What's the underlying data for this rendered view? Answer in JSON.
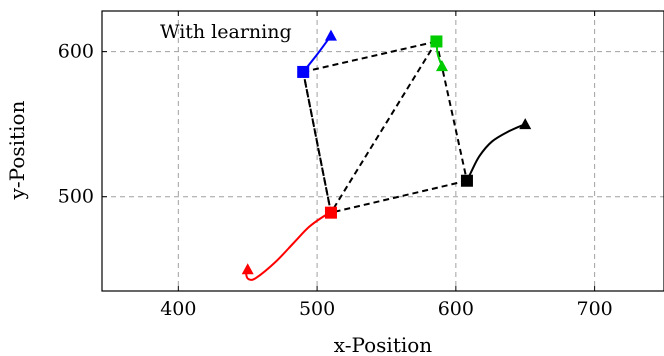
{
  "chart_data": {
    "type": "line",
    "title": "",
    "xlabel": "x-Position",
    "ylabel": "y-Position",
    "xlim": [
      345,
      750
    ],
    "ylim": [
      435,
      628
    ],
    "xticks": [
      400,
      500,
      600,
      700
    ],
    "yticks": [
      500,
      600
    ],
    "grid": true,
    "grid_style": "dashed",
    "annotation": "With learning",
    "colors": {
      "red": "#ff0000",
      "blue": "#0000ff",
      "green": "#00cc00",
      "black": "#000000",
      "grid": "#a0a0a0"
    },
    "formation": {
      "style": "dashed",
      "color": "#000000",
      "points": [
        [
          490,
          586
        ],
        [
          586,
          607
        ],
        [
          608,
          511
        ],
        [
          510,
          489
        ]
      ],
      "edges": [
        [
          0,
          1
        ],
        [
          1,
          2
        ],
        [
          2,
          3
        ],
        [
          3,
          0
        ],
        [
          0,
          3
        ],
        [
          1,
          3
        ]
      ]
    },
    "series": [
      {
        "color": "red",
        "start": [
          450,
          450
        ],
        "end": [
          510,
          489
        ],
        "path": [
          [
            450,
            450
          ],
          [
            449,
            446
          ],
          [
            451,
            443
          ],
          [
            456,
            444
          ],
          [
            470,
            455
          ],
          [
            483,
            468
          ],
          [
            494,
            479
          ],
          [
            504,
            486
          ],
          [
            510,
            489
          ]
        ]
      },
      {
        "color": "blue",
        "start": [
          510,
          611
        ],
        "end": [
          490,
          586
        ],
        "path": [
          [
            510,
            611
          ],
          [
            500,
            598
          ],
          [
            490,
            586
          ]
        ]
      },
      {
        "color": "green",
        "start": [
          590,
          590
        ],
        "end": [
          586,
          607
        ],
        "path": [
          [
            590,
            590
          ],
          [
            587,
            598
          ],
          [
            586,
            607
          ]
        ]
      },
      {
        "color": "black",
        "start": [
          650,
          550
        ],
        "end": [
          608,
          511
        ],
        "path": [
          [
            650,
            550
          ],
          [
            638,
            545
          ],
          [
            626,
            538
          ],
          [
            617,
            528
          ],
          [
            611,
            517
          ],
          [
            608,
            511
          ]
        ]
      }
    ]
  }
}
